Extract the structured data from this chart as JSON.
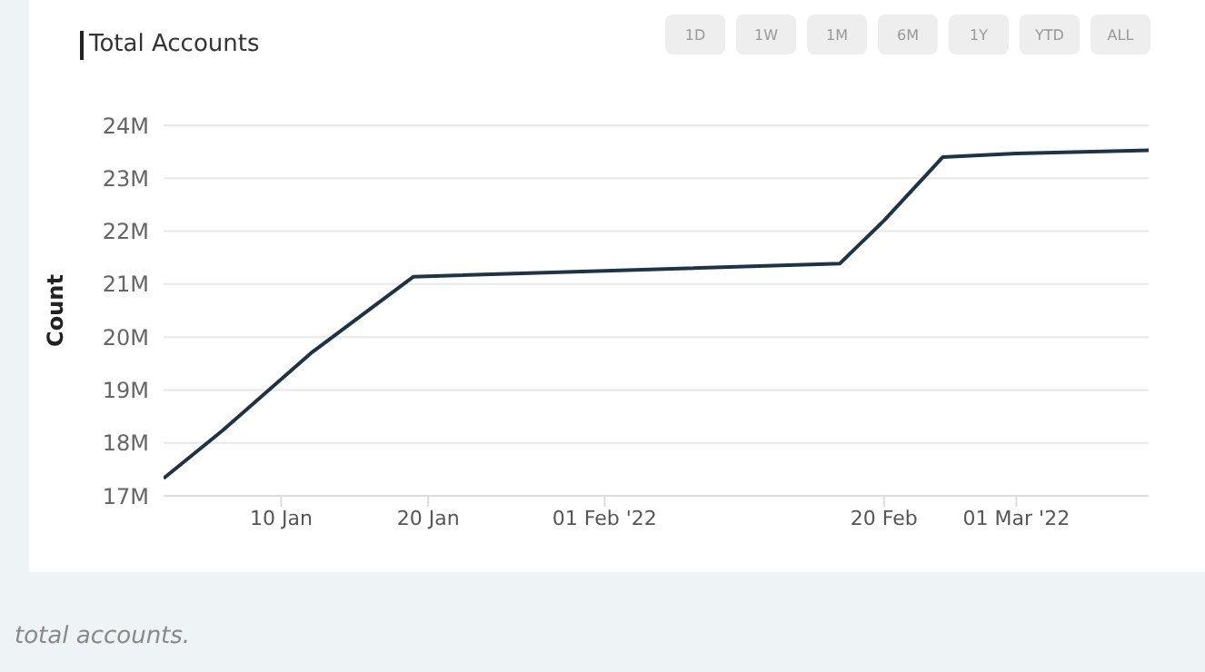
{
  "chart_data": {
    "type": "line",
    "title": "Total Accounts",
    "ylabel": "Count",
    "x": [
      "2022-01-02",
      "2022-01-06",
      "2022-01-12",
      "2022-01-19",
      "2022-02-01",
      "2022-02-17",
      "2022-02-20",
      "2022-02-24",
      "2022-03-01",
      "2022-03-10"
    ],
    "series": [
      {
        "color": "#1f3347",
        "values": [
          17.33,
          18.23,
          19.69,
          21.14,
          21.25,
          21.39,
          22.2,
          23.4,
          23.47,
          23.53
        ]
      }
    ],
    "xlim": [
      "2022-01-02",
      "2022-03-10"
    ],
    "xticks": [
      {
        "value": "2022-01-10",
        "label": "10 Jan"
      },
      {
        "value": "2022-01-20",
        "label": "20 Jan"
      },
      {
        "value": "2022-02-01",
        "label": "01 Feb '22"
      },
      {
        "value": "2022-02-20",
        "label": "20 Feb"
      },
      {
        "value": "2022-03-01",
        "label": "01 Mar '22"
      }
    ],
    "ylim": [
      17,
      24
    ],
    "yticks": [
      {
        "value": 17,
        "label": "17M"
      },
      {
        "value": 18,
        "label": "18M"
      },
      {
        "value": 19,
        "label": "19M"
      },
      {
        "value": 20,
        "label": "20M"
      },
      {
        "value": 21,
        "label": "21M"
      },
      {
        "value": 22,
        "label": "22M"
      },
      {
        "value": 23,
        "label": "23M"
      },
      {
        "value": 24,
        "label": "24M"
      }
    ],
    "grid": "y",
    "legend": false,
    "marker": "none",
    "line_style": "solid",
    "annotations": [
      "1D",
      "1W",
      "1M",
      "6M",
      "1Y",
      "YTD",
      "ALL",
      "total accounts."
    ]
  }
}
